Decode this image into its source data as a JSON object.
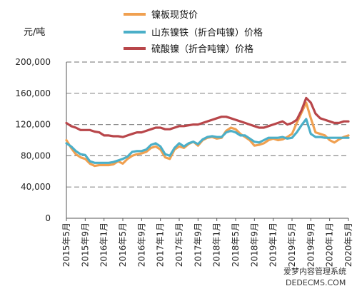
{
  "chart_data": {
    "type": "line",
    "ylabel": "元/吨",
    "ylim": [
      0,
      200000
    ],
    "yticks": [
      "200,000",
      "160,000",
      "120,000",
      "80,000",
      "40,000",
      "0"
    ],
    "ytick_values": [
      200000,
      160000,
      120000,
      80000,
      40000,
      0
    ],
    "grid": "horizontal-dashed",
    "legend_position": "top",
    "x_tick_labels": [
      "2015年5月",
      "2015年9月",
      "2016年1月",
      "2016年5月",
      "2016年9月",
      "2017年1月",
      "2017年5月",
      "2017年9月",
      "2018年1月",
      "2018年5月",
      "2018年9月",
      "2019年1月",
      "2019年5月",
      "2019年9月",
      "2020年1月",
      "2020年5月"
    ],
    "x_tick_positions": [
      0,
      4,
      8,
      12,
      16,
      20,
      24,
      28,
      32,
      36,
      40,
      44,
      48,
      52,
      56,
      60
    ],
    "x": [
      0,
      1,
      2,
      3,
      4,
      5,
      6,
      7,
      8,
      9,
      10,
      11,
      12,
      13,
      14,
      15,
      16,
      17,
      18,
      19,
      20,
      21,
      22,
      23,
      24,
      25,
      26,
      27,
      28,
      29,
      30,
      31,
      32,
      33,
      34,
      35,
      36,
      37,
      38,
      39,
      40,
      41,
      42,
      43,
      44,
      45,
      46,
      47,
      48,
      49,
      50,
      51,
      52,
      53,
      54,
      55,
      56,
      57,
      58,
      59,
      60
    ],
    "series": [
      {
        "name": "镍板现货价",
        "color": "#f0a050",
        "values": [
          100000,
          90000,
          82000,
          78000,
          76000,
          70000,
          67000,
          68000,
          68000,
          68000,
          69000,
          73000,
          70000,
          76000,
          80000,
          82000,
          83000,
          85000,
          90000,
          92000,
          88000,
          78000,
          76000,
          88000,
          92000,
          90000,
          95000,
          98000,
          93000,
          100000,
          103000,
          104000,
          102000,
          103000,
          112000,
          116000,
          114000,
          108000,
          104000,
          100000,
          93000,
          94000,
          96000,
          100000,
          102000,
          100000,
          101000,
          104000,
          108000,
          122000,
          135000,
          148000,
          128000,
          110000,
          108000,
          106000,
          100000,
          97000,
          101000,
          104000,
          106000
        ]
      },
      {
        "name": "山东镍铁（折合吨镍）价格",
        "color": "#4bafc8",
        "values": [
          96000,
          92000,
          86000,
          82000,
          81000,
          73000,
          71000,
          71000,
          71000,
          71000,
          72000,
          74000,
          76000,
          79000,
          85000,
          86000,
          86000,
          88000,
          94000,
          96000,
          92000,
          82000,
          80000,
          90000,
          96000,
          92000,
          96000,
          98000,
          95000,
          101000,
          104000,
          105000,
          104000,
          104000,
          110000,
          112000,
          110000,
          106000,
          106000,
          102000,
          98000,
          97000,
          100000,
          103000,
          103000,
          103000,
          104000,
          102000,
          103000,
          110000,
          119000,
          127000,
          108000,
          104000,
          104000,
          103000,
          103000,
          103000,
          103000,
          103000,
          103000
        ]
      },
      {
        "name": "硫酸镍（折合吨镍）价格",
        "color": "#b8464a",
        "values": [
          122000,
          118000,
          116000,
          113000,
          113000,
          113000,
          111000,
          110000,
          106000,
          106000,
          105000,
          105000,
          104000,
          106000,
          108000,
          110000,
          110000,
          112000,
          114000,
          116000,
          116000,
          114000,
          114000,
          116000,
          118000,
          118000,
          119000,
          120000,
          120000,
          122000,
          124000,
          126000,
          128000,
          130000,
          130000,
          128000,
          126000,
          124000,
          122000,
          120000,
          118000,
          116000,
          116000,
          118000,
          120000,
          122000,
          124000,
          120000,
          122000,
          126000,
          138000,
          154000,
          148000,
          134000,
          128000,
          126000,
          124000,
          122000,
          122000,
          124000,
          124000
        ]
      }
    ]
  },
  "watermark": {
    "line1": "爱梦内容管理系统",
    "line2": "DEDECMS.COM"
  }
}
